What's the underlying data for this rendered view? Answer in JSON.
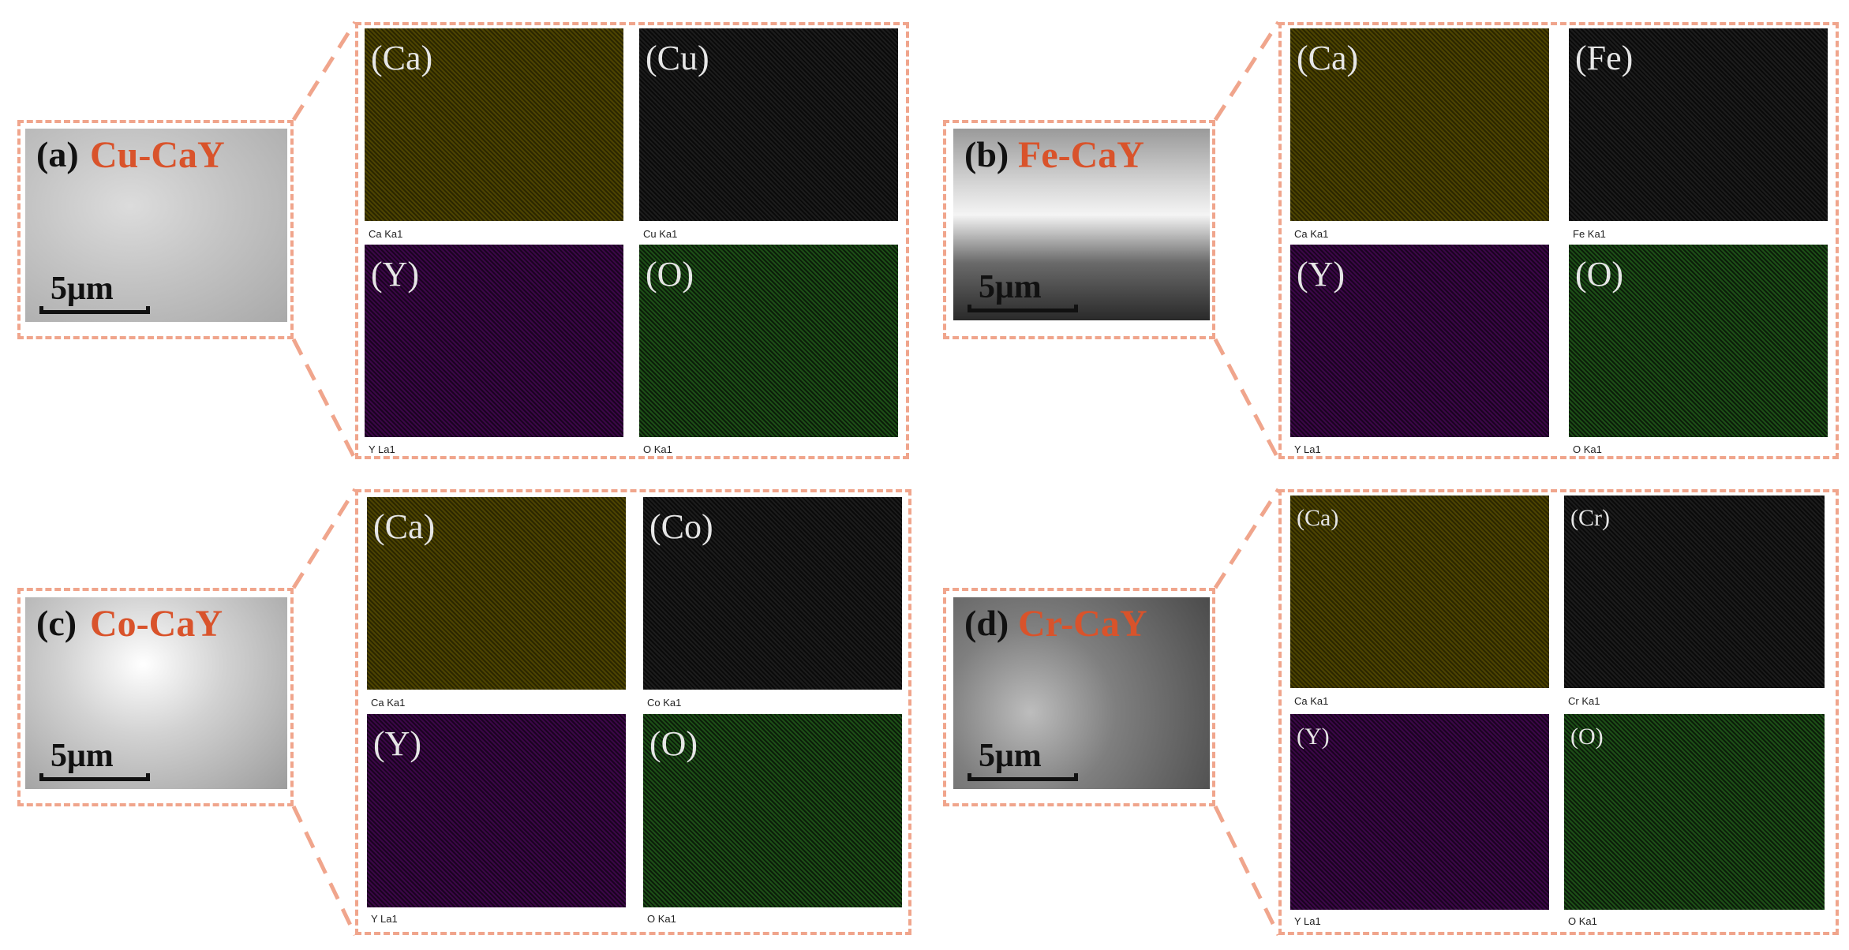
{
  "colors": {
    "border": "#f0a58c",
    "sample_name": "#d9532b"
  },
  "panels": [
    {
      "letter": "(a)",
      "name": "Cu-CaY",
      "scale": "5μm",
      "maps": [
        {
          "title": "(Ca)",
          "caption": "Ca Ka1"
        },
        {
          "title": "(Cu)",
          "caption": "Cu Ka1"
        },
        {
          "title": "(Y)",
          "caption": "Y La1"
        },
        {
          "title": "(O)",
          "caption": "O Ka1"
        }
      ]
    },
    {
      "letter": "(b)",
      "name": "Fe-CaY",
      "scale": "5μm",
      "maps": [
        {
          "title": "(Ca)",
          "caption": "Ca Ka1"
        },
        {
          "title": "(Fe)",
          "caption": "Fe Ka1"
        },
        {
          "title": "(Y)",
          "caption": "Y La1"
        },
        {
          "title": "(O)",
          "caption": "O Ka1"
        }
      ]
    },
    {
      "letter": "(c)",
      "name": "Co-CaY",
      "scale": "5μm",
      "maps": [
        {
          "title": "(Ca)",
          "caption": "Ca Ka1"
        },
        {
          "title": "(Co)",
          "caption": "Co Ka1"
        },
        {
          "title": "(Y)",
          "caption": "Y La1"
        },
        {
          "title": "(O)",
          "caption": "O Ka1"
        }
      ]
    },
    {
      "letter": "(d)",
      "name": "Cr-CaY",
      "scale": "5μm",
      "maps": [
        {
          "title": "(Ca)",
          "caption": "Ca Ka1"
        },
        {
          "title": "(Cr)",
          "caption": "Cr Ka1"
        },
        {
          "title": "(Y)",
          "caption": "Y La1"
        },
        {
          "title": "(O)",
          "caption": "O Ka1"
        }
      ]
    }
  ]
}
